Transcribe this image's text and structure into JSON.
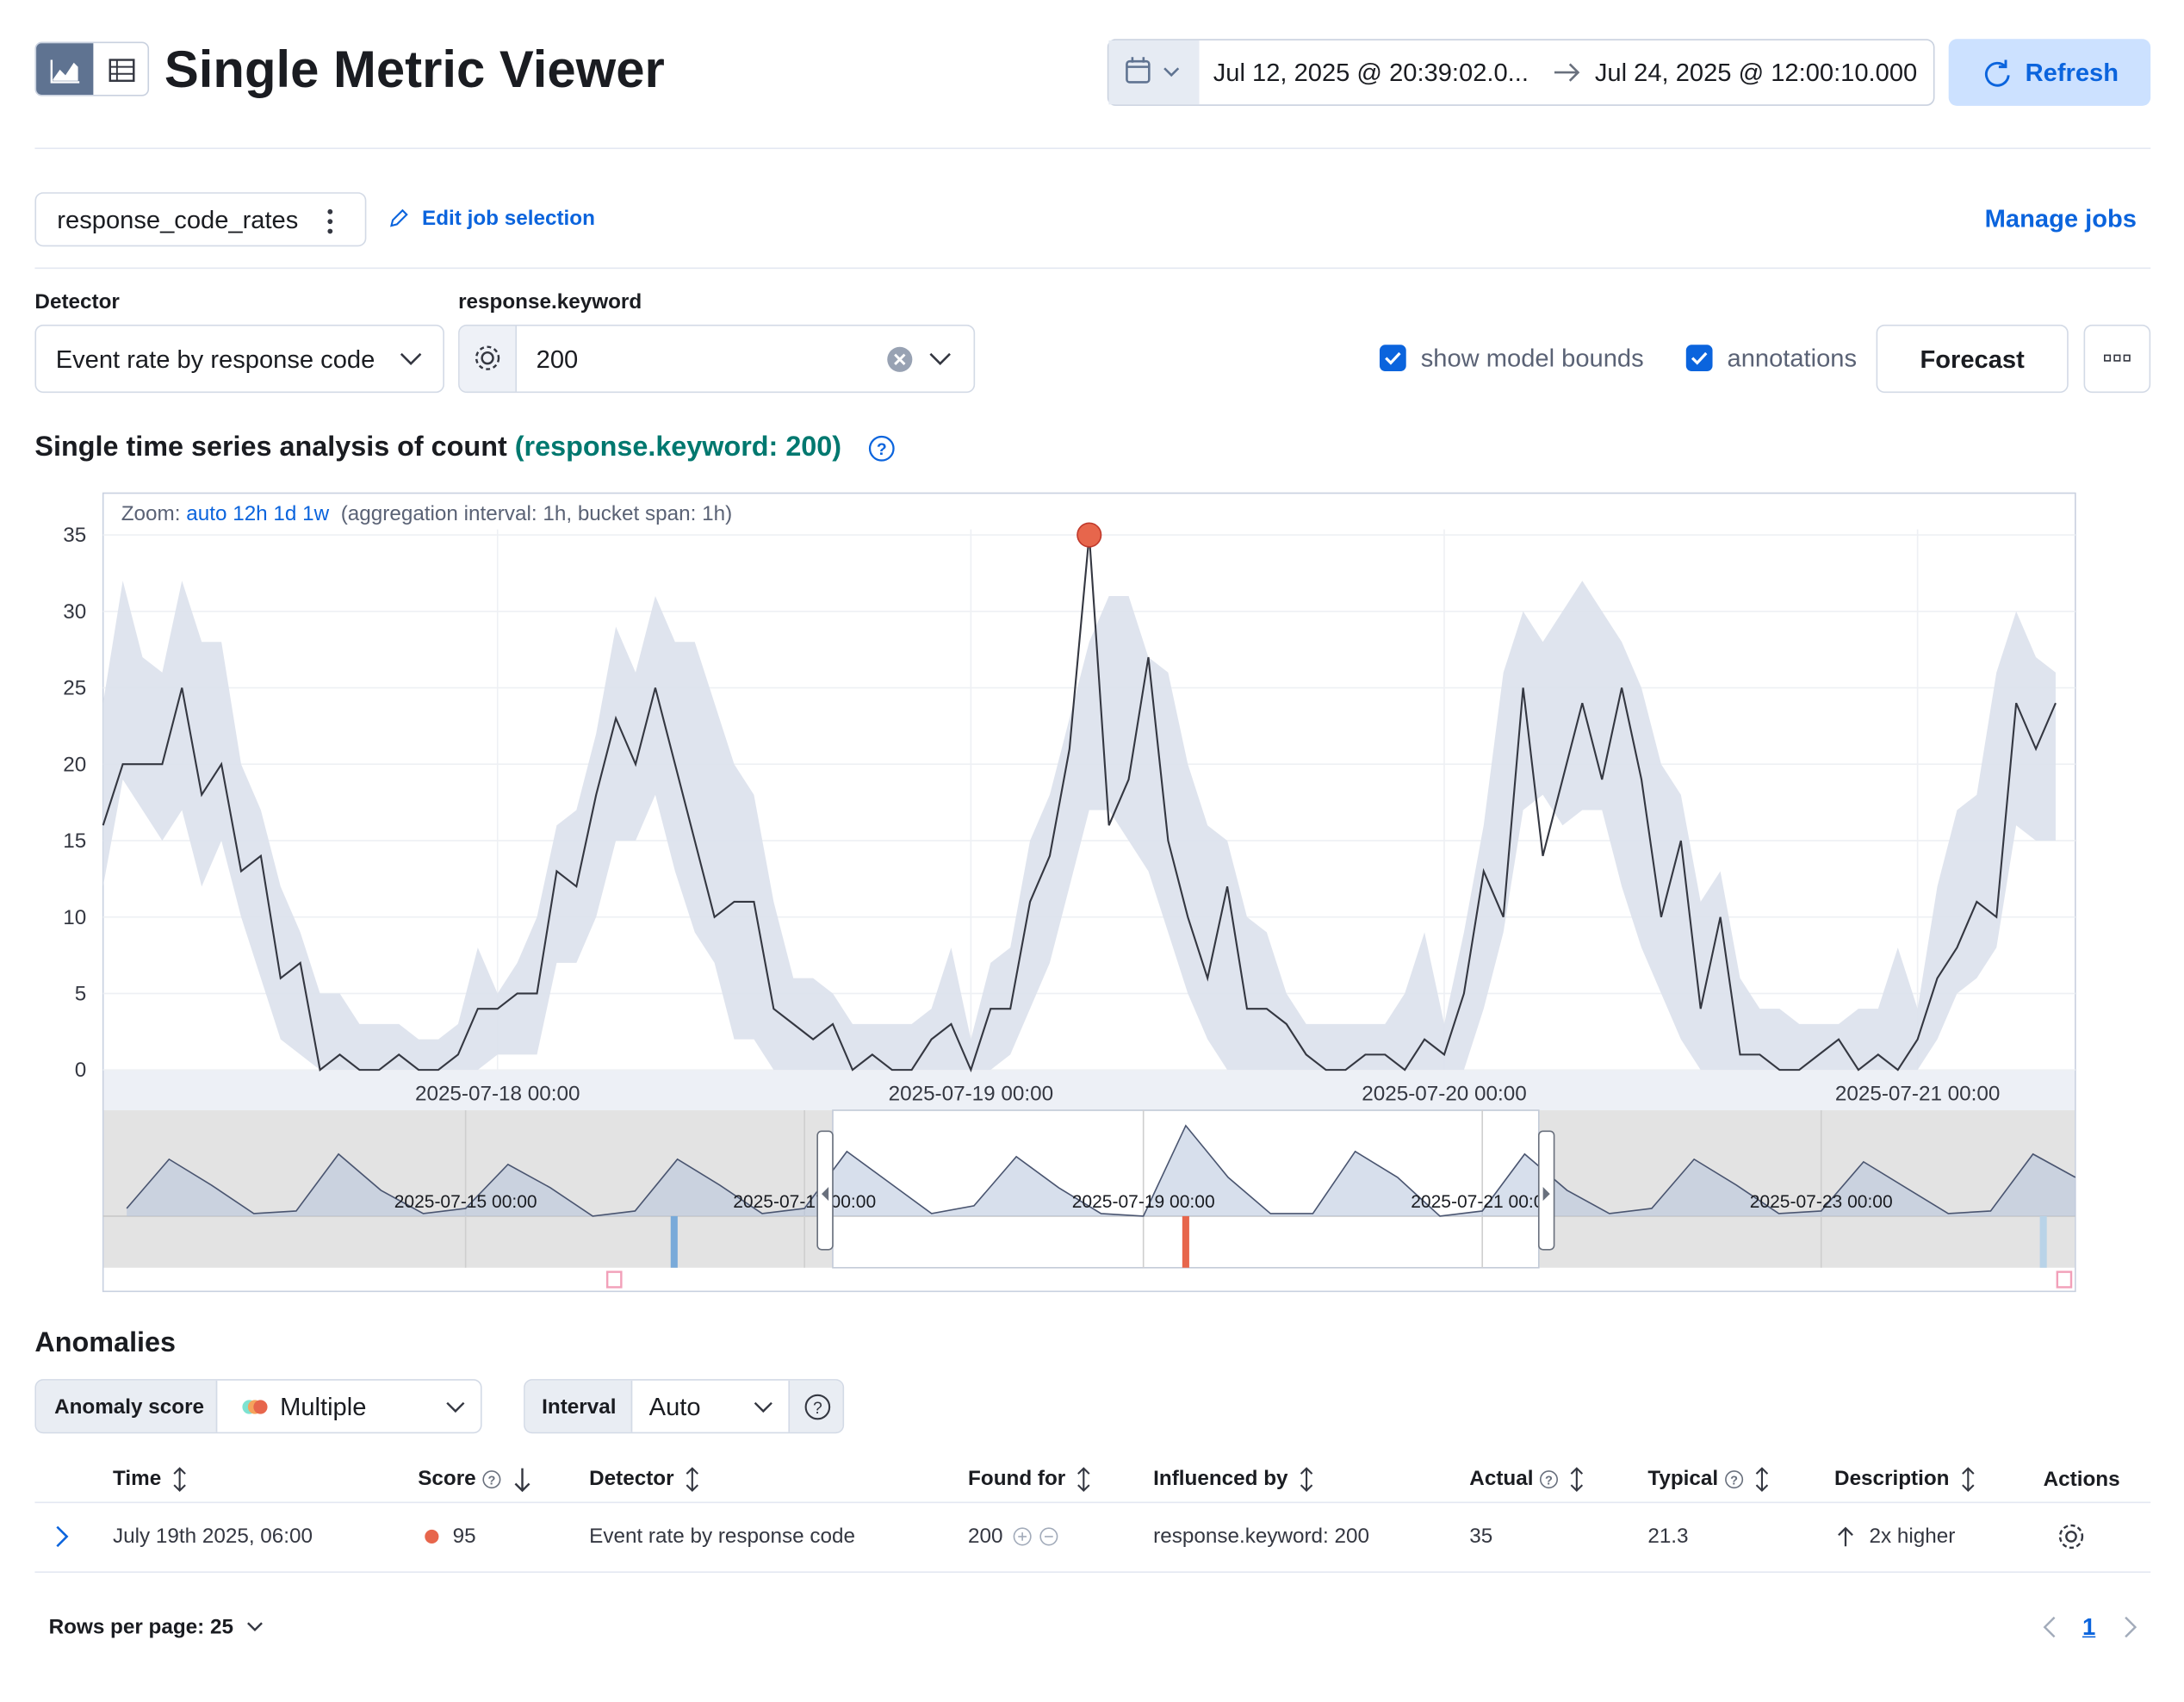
{
  "header": {
    "title": "Single Metric Viewer",
    "time_from": "Jul 12, 2025 @ 20:39:02.0...",
    "time_to": "Jul 24, 2025 @ 12:00:10.000",
    "refresh": "Refresh"
  },
  "job": {
    "id": "response_code_rates",
    "edit": "Edit job selection",
    "manage": "Manage jobs"
  },
  "controls": {
    "detector_label": "Detector",
    "detector": "Event rate by response code",
    "entity_label": "response.keyword",
    "entity": "200",
    "model_bounds": "show model bounds",
    "annotations": "annotations",
    "forecast": "Forecast"
  },
  "chart_data": {
    "type": "line",
    "title": "Single time series analysis of count",
    "title_entity": "(response.keyword: 200)",
    "zoom_label": "Zoom:",
    "zoom_options": [
      "auto",
      "12h",
      "1d",
      "1w"
    ],
    "interval_note": "(aggregation interval: 1h, bucket span: 1h)",
    "x": [
      "2025-07-17 04:00",
      "2025-07-17 05:00",
      "2025-07-17 06:00",
      "2025-07-17 07:00",
      "2025-07-17 08:00",
      "2025-07-17 09:00",
      "2025-07-17 10:00",
      "2025-07-17 11:00",
      "2025-07-17 12:00",
      "2025-07-17 13:00",
      "2025-07-17 14:00",
      "2025-07-17 15:00",
      "2025-07-17 16:00",
      "2025-07-17 17:00",
      "2025-07-17 18:00",
      "2025-07-17 19:00",
      "2025-07-17 20:00",
      "2025-07-17 21:00",
      "2025-07-17 22:00",
      "2025-07-17 23:00",
      "2025-07-18 00:00",
      "2025-07-18 01:00",
      "2025-07-18 02:00",
      "2025-07-18 03:00",
      "2025-07-18 04:00",
      "2025-07-18 05:00",
      "2025-07-18 06:00",
      "2025-07-18 07:00",
      "2025-07-18 08:00",
      "2025-07-18 09:00",
      "2025-07-18 10:00",
      "2025-07-18 11:00",
      "2025-07-18 12:00",
      "2025-07-18 13:00",
      "2025-07-18 14:00",
      "2025-07-18 15:00",
      "2025-07-18 16:00",
      "2025-07-18 17:00",
      "2025-07-18 18:00",
      "2025-07-18 19:00",
      "2025-07-18 20:00",
      "2025-07-18 21:00",
      "2025-07-18 22:00",
      "2025-07-18 23:00",
      "2025-07-19 00:00",
      "2025-07-19 01:00",
      "2025-07-19 02:00",
      "2025-07-19 03:00",
      "2025-07-19 04:00",
      "2025-07-19 05:00",
      "2025-07-19 06:00",
      "2025-07-19 07:00",
      "2025-07-19 08:00",
      "2025-07-19 09:00",
      "2025-07-19 10:00",
      "2025-07-19 11:00",
      "2025-07-19 12:00",
      "2025-07-19 13:00",
      "2025-07-19 14:00",
      "2025-07-19 15:00",
      "2025-07-19 16:00",
      "2025-07-19 17:00",
      "2025-07-19 18:00",
      "2025-07-19 19:00",
      "2025-07-19 20:00",
      "2025-07-19 21:00",
      "2025-07-19 22:00",
      "2025-07-19 23:00",
      "2025-07-20 00:00",
      "2025-07-20 01:00",
      "2025-07-20 02:00",
      "2025-07-20 03:00",
      "2025-07-20 04:00",
      "2025-07-20 05:00",
      "2025-07-20 06:00",
      "2025-07-20 07:00",
      "2025-07-20 08:00",
      "2025-07-20 09:00",
      "2025-07-20 10:00",
      "2025-07-20 11:00",
      "2025-07-20 12:00",
      "2025-07-20 13:00",
      "2025-07-20 14:00",
      "2025-07-20 15:00",
      "2025-07-20 16:00",
      "2025-07-20 17:00",
      "2025-07-20 18:00",
      "2025-07-20 19:00",
      "2025-07-20 20:00",
      "2025-07-20 21:00",
      "2025-07-20 22:00",
      "2025-07-20 23:00",
      "2025-07-21 00:00",
      "2025-07-21 01:00",
      "2025-07-21 02:00",
      "2025-07-21 03:00",
      "2025-07-21 04:00",
      "2025-07-21 05:00",
      "2025-07-21 06:00",
      "2025-07-21 07:00"
    ],
    "values": [
      16,
      20,
      20,
      20,
      25,
      18,
      20,
      13,
      14,
      6,
      7,
      0,
      1,
      0,
      0,
      1,
      0,
      0,
      1,
      4,
      4,
      5,
      5,
      13,
      12,
      18,
      23,
      20,
      25,
      20,
      15,
      10,
      11,
      11,
      4,
      3,
      2,
      3,
      0,
      1,
      0,
      0,
      2,
      3,
      0,
      4,
      4,
      11,
      14,
      21,
      35,
      16,
      19,
      27,
      15,
      10,
      6,
      12,
      4,
      4,
      3,
      1,
      0,
      0,
      1,
      1,
      0,
      2,
      1,
      5,
      13,
      10,
      25,
      14,
      19,
      24,
      19,
      25,
      19,
      10,
      15,
      4,
      10,
      1,
      1,
      0,
      0,
      1,
      2,
      0,
      1,
      0,
      2,
      6,
      8,
      11,
      10,
      24,
      21,
      24
    ],
    "model_upper": [
      24,
      32,
      27,
      26,
      32,
      28,
      28,
      20,
      17,
      12,
      9,
      5,
      5,
      3,
      3,
      3,
      2,
      2,
      3,
      8,
      5,
      7,
      10,
      16,
      17,
      22,
      29,
      26,
      31,
      28,
      28,
      24,
      20,
      18,
      11,
      6,
      6,
      5,
      3,
      3,
      3,
      3,
      4,
      8,
      2,
      7,
      8,
      15,
      18,
      23,
      28,
      31,
      31,
      27,
      26,
      20,
      16,
      15,
      10,
      9,
      5,
      3,
      3,
      3,
      3,
      3,
      5,
      9,
      3,
      9,
      16,
      26,
      30,
      28,
      30,
      32,
      30,
      28,
      25,
      20,
      18,
      11,
      13,
      6,
      4,
      4,
      3,
      3,
      3,
      4,
      4,
      8,
      4,
      12,
      17,
      18,
      26,
      30,
      27,
      26
    ],
    "model_lower": [
      12,
      19,
      17,
      15,
      17,
      12,
      15,
      10,
      6,
      2,
      1,
      0,
      0,
      0,
      0,
      0,
      0,
      0,
      0,
      0,
      1,
      1,
      1,
      7,
      7,
      10,
      15,
      15,
      18,
      13,
      9,
      7,
      2,
      2,
      0,
      0,
      0,
      0,
      0,
      0,
      0,
      0,
      0,
      0,
      0,
      0,
      1,
      4,
      7,
      12,
      17,
      17,
      15,
      13,
      9,
      5,
      2,
      0,
      0,
      0,
      0,
      0,
      0,
      0,
      0,
      0,
      0,
      0,
      0,
      0,
      4,
      9,
      17,
      18,
      16,
      17,
      17,
      12,
      8,
      5,
      2,
      0,
      0,
      0,
      0,
      0,
      0,
      0,
      0,
      0,
      0,
      0,
      0,
      2,
      5,
      6,
      8,
      16,
      15,
      15
    ],
    "color": "#343741",
    "band_color": "#dbe1ec",
    "anomaly": {
      "x": "2025-07-19 06:00",
      "value": 35,
      "color": "#e7664c"
    },
    "xlim": [
      "2025-07-17 04:00",
      "2025-07-21 08:00"
    ],
    "xticks": [
      "2025-07-18 00:00",
      "2025-07-19 00:00",
      "2025-07-20 00:00",
      "2025-07-21 00:00"
    ],
    "ylim": [
      0,
      35
    ],
    "yticks": [
      0,
      5,
      10,
      15,
      20,
      25,
      30,
      35
    ],
    "grid": true,
    "context": {
      "xlim": [
        "2025-07-12 20:39",
        "2025-07-24 12:00"
      ],
      "ylim": [
        0,
        35
      ],
      "xticks": [
        "2025-07-15 00:00",
        "2025-07-17 00:00",
        "2025-07-19 00:00",
        "2025-07-21 00:00",
        "2025-07-23 00:00"
      ],
      "x": [
        "2025-07-13 00:00",
        "2025-07-13 06:00",
        "2025-07-13 12:00",
        "2025-07-13 18:00",
        "2025-07-14 00:00",
        "2025-07-14 06:00",
        "2025-07-14 12:00",
        "2025-07-14 18:00",
        "2025-07-15 00:00",
        "2025-07-15 06:00",
        "2025-07-15 12:00",
        "2025-07-15 18:00",
        "2025-07-16 00:00",
        "2025-07-16 06:00",
        "2025-07-16 12:00",
        "2025-07-16 18:00",
        "2025-07-17 00:00",
        "2025-07-17 06:00",
        "2025-07-17 12:00",
        "2025-07-17 18:00",
        "2025-07-18 00:00",
        "2025-07-18 06:00",
        "2025-07-18 12:00",
        "2025-07-18 18:00",
        "2025-07-19 00:00",
        "2025-07-19 06:00",
        "2025-07-19 12:00",
        "2025-07-19 18:00",
        "2025-07-20 00:00",
        "2025-07-20 06:00",
        "2025-07-20 12:00",
        "2025-07-20 18:00",
        "2025-07-21 00:00",
        "2025-07-21 06:00",
        "2025-07-21 12:00",
        "2025-07-21 18:00",
        "2025-07-22 00:00",
        "2025-07-22 06:00",
        "2025-07-22 12:00",
        "2025-07-22 18:00",
        "2025-07-23 00:00",
        "2025-07-23 06:00",
        "2025-07-23 12:00",
        "2025-07-23 18:00",
        "2025-07-24 00:00",
        "2025-07-24 06:00",
        "2025-07-24 12:00"
      ],
      "values": [
        3,
        22,
        12,
        1,
        2,
        24,
        10,
        1,
        3,
        20,
        11,
        0,
        2,
        22,
        12,
        1,
        3,
        25,
        13,
        1,
        4,
        23,
        11,
        1,
        0,
        35,
        15,
        1,
        1,
        25,
        15,
        0,
        2,
        24,
        10,
        1,
        3,
        22,
        12,
        1,
        2,
        21,
        11,
        1,
        2,
        24,
        15
      ]
    }
  },
  "anomalies": {
    "title": "Anomalies",
    "score_label": "Anomaly score",
    "score_value": "Multiple",
    "interval_label": "Interval",
    "interval_value": "Auto",
    "columns": [
      "Time",
      "Score",
      "Detector",
      "Found for",
      "Influenced by",
      "Actual",
      "Typical",
      "Description",
      "Actions"
    ],
    "rows": [
      [
        "July 19th 2025, 06:00",
        95,
        "Event rate by response code",
        "200",
        "response.keyword: 200",
        35,
        21.3,
        "2x higher"
      ]
    ],
    "rows_per_page": "Rows per page: 25",
    "page": "1"
  }
}
